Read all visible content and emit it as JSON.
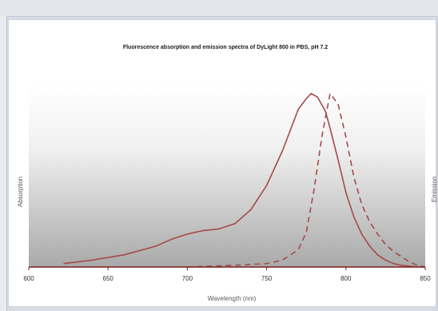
{
  "chart_data": {
    "type": "line",
    "title": "Fluorescence absorption and emission spectra of DyLight 800 in PBS, pH 7.2",
    "xlabel": "Wavelength (nm)",
    "ylabel_left": "Absorption",
    "ylabel_right": "Emission",
    "xlim": [
      600,
      850
    ],
    "ylim": [
      0,
      1
    ],
    "x_ticks": [
      600,
      650,
      700,
      750,
      800,
      850
    ],
    "grid": false,
    "series": [
      {
        "style": "solid",
        "color": "#a54a4a",
        "x": [
          622,
          640,
          660,
          680,
          690,
          700,
          710,
          720,
          730,
          740,
          750,
          760,
          770,
          775,
          778,
          782,
          787,
          790,
          795,
          800,
          805,
          810,
          815,
          820,
          825,
          830,
          835,
          840,
          845
        ],
        "y": [
          0.02,
          0.04,
          0.07,
          0.12,
          0.16,
          0.19,
          0.21,
          0.22,
          0.25,
          0.33,
          0.47,
          0.67,
          0.91,
          0.97,
          1.0,
          0.98,
          0.9,
          0.8,
          0.62,
          0.43,
          0.29,
          0.19,
          0.12,
          0.07,
          0.04,
          0.02,
          0.01,
          0.005,
          0.0
        ]
      },
      {
        "style": "dashed",
        "color": "#a54a4a",
        "x": [
          700,
          730,
          750,
          760,
          770,
          775,
          780,
          785,
          790,
          795,
          800,
          805,
          810,
          815,
          820,
          825,
          830,
          835,
          840,
          845,
          850
        ],
        "y": [
          0.0,
          0.01,
          0.02,
          0.04,
          0.1,
          0.2,
          0.45,
          0.76,
          1.0,
          0.94,
          0.75,
          0.52,
          0.36,
          0.26,
          0.19,
          0.13,
          0.09,
          0.06,
          0.03,
          0.01,
          0.0
        ]
      }
    ]
  }
}
